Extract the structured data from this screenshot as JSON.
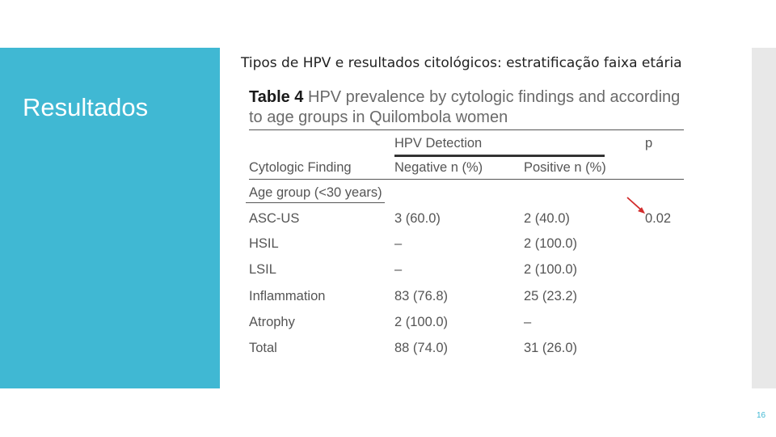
{
  "slide": {
    "section_title": "Resultados",
    "subtitle": "Tipos de HPV e resultados citológicos: estratificação faixa etária",
    "page_number": "16"
  },
  "table": {
    "caption_label": "Table 4",
    "caption_text": "HPV prevalence by cytologic findings and according to age groups in Quilombola women",
    "group_header": "HPV Detection",
    "p_header": "p",
    "col_finding": "Cytologic Finding",
    "col_negative": "Negative n (%)",
    "col_positive": "Positive n (%)",
    "age_group": "Age group (<30 years)",
    "rows": [
      {
        "finding": "ASC-US",
        "negative": "3 (60.0)",
        "positive": "2 (40.0)",
        "p": "0.02"
      },
      {
        "finding": "HSIL",
        "negative": "–",
        "positive": "2 (100.0)",
        "p": ""
      },
      {
        "finding": "LSIL",
        "negative": "–",
        "positive": "2 (100.0)",
        "p": ""
      },
      {
        "finding": "Inflammation",
        "negative": "83 (76.8)",
        "positive": "25 (23.2)",
        "p": ""
      },
      {
        "finding": "Atrophy",
        "negative": "2 (100.0)",
        "positive": "–",
        "p": ""
      },
      {
        "finding": "Total",
        "negative": "88 (74.0)",
        "positive": "31 (26.0)",
        "p": ""
      }
    ]
  },
  "colors": {
    "accent": "#40b8d3",
    "arrow": "#d22c2c"
  }
}
